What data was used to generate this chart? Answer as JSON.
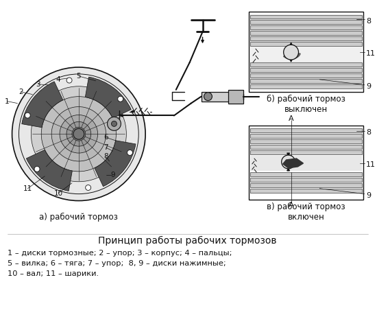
{
  "title": "Принцип работы рабочих тормозов",
  "caption_line1": "1 – диски тормозные; 2 – упор; 3 – корпус; 4 – пальцы;",
  "caption_line2": "5 – вилка; 6 – тяга; 7 – упор;  8, 9 – диски нажимные;",
  "caption_line3": "10 – вал; 11 – шарики.",
  "label_a": "а) рабочий тормоз",
  "label_b": "б) рабочий тормоз\nвыключен",
  "label_v": "в) рабочий тормоз\nвключен",
  "bg_color": "#ffffff",
  "fig_width": 5.5,
  "fig_height": 4.62,
  "dpi": 100
}
